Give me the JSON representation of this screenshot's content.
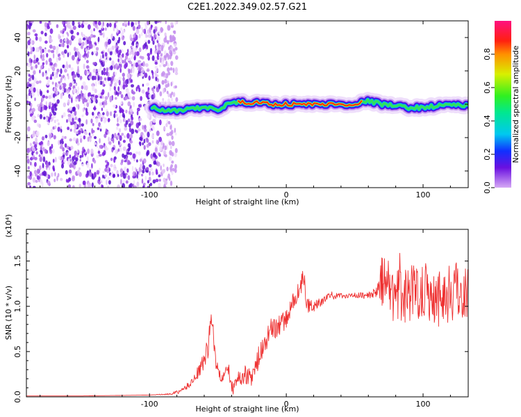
{
  "figure_title": "C2E1.2022.349.02.57.G21",
  "colors": {
    "snr_line": "#ee3030",
    "spectrogram_noise": "#7a1fe0",
    "frame": "#000000"
  },
  "colorbar": {
    "label": "Normalized spectral amplitude",
    "range": [
      0.0,
      1.0
    ],
    "ticks": [
      0.0,
      0.2,
      0.4,
      0.6,
      0.8
    ],
    "tick_labels": [
      "0.0",
      "0.2",
      "0.4",
      "0.6",
      "0.8"
    ],
    "colormap": "rainbow (violet to magenta)"
  },
  "chart_data": [
    {
      "type": "heatmap",
      "xlabel": "Height of straight line (km)",
      "ylabel": "Frequency (Hz)",
      "xlim": [
        -190,
        133
      ],
      "ylim": [
        -50,
        50
      ],
      "xticks": [
        -100,
        0,
        100
      ],
      "xtick_labels": [
        "-100",
        "0",
        "100"
      ],
      "yticks": [
        -40,
        -20,
        0,
        20,
        40
      ],
      "ytick_labels": [
        "-40",
        "-20",
        "0",
        "20",
        "40"
      ],
      "noise_region_x": [
        -190,
        -80
      ],
      "signal_track": {
        "x": [
          -98,
          -90,
          -80,
          -70,
          -60,
          -50,
          -40,
          -30,
          -20,
          -10,
          0,
          10,
          20,
          30,
          40,
          50,
          55,
          60,
          70,
          80,
          90,
          100,
          110,
          120,
          133
        ],
        "y": [
          -2,
          -4,
          -4,
          -3,
          -2,
          -3,
          1,
          1,
          1,
          0,
          0,
          0,
          0,
          0,
          0,
          0,
          1,
          2,
          0,
          -1,
          -2,
          -2,
          -1,
          0,
          -1
        ]
      }
    },
    {
      "type": "line",
      "xlabel": "Height of straight line (km)",
      "ylabel": "SNR (10 * v/v)",
      "y_multiplier_label": "(x10⁴)",
      "xlim": [
        -190,
        133
      ],
      "ylim": [
        0,
        1.85
      ],
      "xticks": [
        -100,
        0,
        100
      ],
      "xtick_labels": [
        "-100",
        "0",
        "100"
      ],
      "yticks": [
        0.0,
        0.5,
        1.0,
        1.5
      ],
      "ytick_labels": [
        "0.0",
        "0.5",
        "1.0",
        "1.5"
      ],
      "series": [
        {
          "x": [
            -190,
            -150,
            -100,
            -85,
            -80,
            -75,
            -70,
            -65,
            -60,
            -57,
            -55,
            -52,
            -50,
            -48,
            -45,
            -42,
            -40,
            -35,
            -30,
            -25,
            -20,
            -15,
            -10,
            -5,
            0,
            5,
            10,
            13,
            15,
            20,
            25,
            30,
            40,
            50,
            60,
            65,
            68,
            70,
            80,
            90,
            100,
            110,
            120,
            130,
            133
          ],
          "y": [
            0.01,
            0.01,
            0.02,
            0.03,
            0.05,
            0.08,
            0.15,
            0.25,
            0.4,
            0.55,
            0.95,
            0.45,
            0.3,
            0.2,
            0.25,
            0.3,
            0.1,
            0.2,
            0.25,
            0.2,
            0.45,
            0.6,
            0.75,
            0.8,
            0.85,
            1.05,
            1.2,
            1.35,
            1.0,
            1.0,
            1.05,
            1.1,
            1.12,
            1.12,
            1.12,
            1.15,
            1.2,
            1.3,
            1.1,
            1.15,
            1.2,
            1.1,
            1.15,
            1.2,
            1.1
          ],
          "noise_amplitude": [
            0,
            0,
            0,
            0.01,
            0.02,
            0.03,
            0.04,
            0.06,
            0.1,
            0.15,
            0.1,
            0.1,
            0.08,
            0.06,
            0.06,
            0.08,
            0.06,
            0.08,
            0.1,
            0.1,
            0.12,
            0.15,
            0.15,
            0.12,
            0.1,
            0.1,
            0.1,
            0.12,
            0.1,
            0.06,
            0.05,
            0.04,
            0.03,
            0.03,
            0.04,
            0.05,
            0.12,
            0.3,
            0.32,
            0.32,
            0.33,
            0.33,
            0.35,
            0.35,
            0.35
          ]
        }
      ]
    }
  ]
}
